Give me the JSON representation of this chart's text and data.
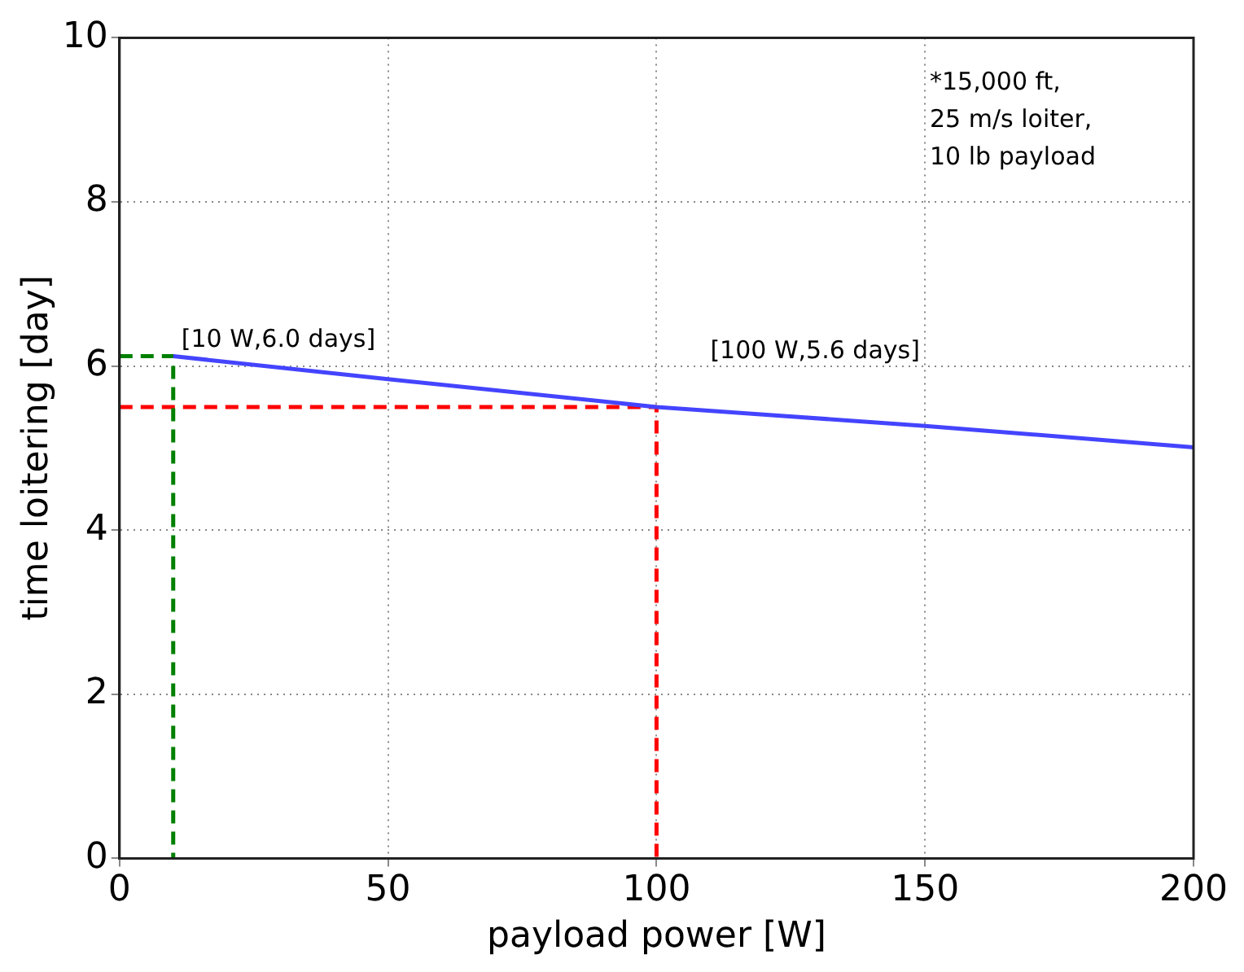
{
  "chart_data": {
    "type": "line",
    "xlabel": "payload power [W]",
    "ylabel": "time loitering [day]",
    "xlim": [
      0,
      200
    ],
    "xticks": [
      0,
      50,
      100,
      150,
      200
    ],
    "ylim": [
      0,
      10
    ],
    "yticks": [
      0,
      2,
      4,
      6,
      8,
      10
    ],
    "grid": true,
    "line_style": "solid",
    "marker": "none",
    "series": [
      {
        "x": [
          10,
          50,
          100,
          150,
          200
        ],
        "values": [
          6.12,
          5.84,
          5.5,
          5.27,
          5.01
        ],
        "color": "#4444ff"
      },
      {
        "x": [
          0,
          10,
          10
        ],
        "values": [
          6.12,
          6.12,
          0
        ],
        "color": "#008000",
        "line_style": "dashed"
      },
      {
        "x": [
          0,
          100,
          100
        ],
        "values": [
          5.5,
          5.5,
          0
        ],
        "color": "#ff0000",
        "line_style": "dashed"
      }
    ],
    "annotations": [
      {
        "text": "[10 W,6.0 days]",
        "x": 10,
        "y": 6.12
      },
      {
        "text": "[100 W,5.6 days]",
        "x": 100,
        "y": 5.5
      },
      "*15,000 ft,\n25 m/s loiter,\n10 lb payload"
    ]
  }
}
